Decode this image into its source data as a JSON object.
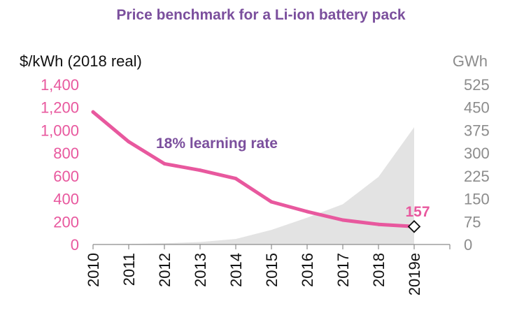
{
  "chart_data": {
    "type": "line",
    "title": "Price benchmark for a Li-ion battery pack",
    "ylabel": "$/kWh (2018 real)",
    "y2label": "GWh",
    "categories": [
      "2010",
      "2011",
      "2012",
      "2013",
      "2014",
      "2015",
      "2016",
      "2017",
      "2018",
      "2019e"
    ],
    "ylim": [
      0,
      1400
    ],
    "y_ticks": [
      "0",
      "200",
      "400",
      "600",
      "800",
      "1,000",
      "1,200",
      "1,400"
    ],
    "y2lim": [
      0,
      525
    ],
    "y2_ticks": [
      "0",
      "75",
      "150",
      "225",
      "300",
      "375",
      "450",
      "525"
    ],
    "grid": false,
    "series": [
      {
        "axis": "left",
        "type": "line",
        "values": [
          1160,
          899,
          707,
          650,
          577,
          373,
          288,
          214,
          176,
          157
        ]
      },
      {
        "axis": "right",
        "type": "area",
        "values": [
          0.5,
          1.5,
          4,
          8,
          18,
          48,
          88,
          132,
          222,
          385
        ]
      }
    ],
    "annotations": {
      "learning_rate": "18%  learning rate",
      "last_value": "157"
    },
    "colors": {
      "title": "#7B4F9D",
      "price_line": "#E8589E",
      "left_axis": "#E8589E",
      "right_axis": "#8C8C8C",
      "area_fill": "#E3E3E3",
      "learning_rate": "#7B4F9D"
    }
  }
}
